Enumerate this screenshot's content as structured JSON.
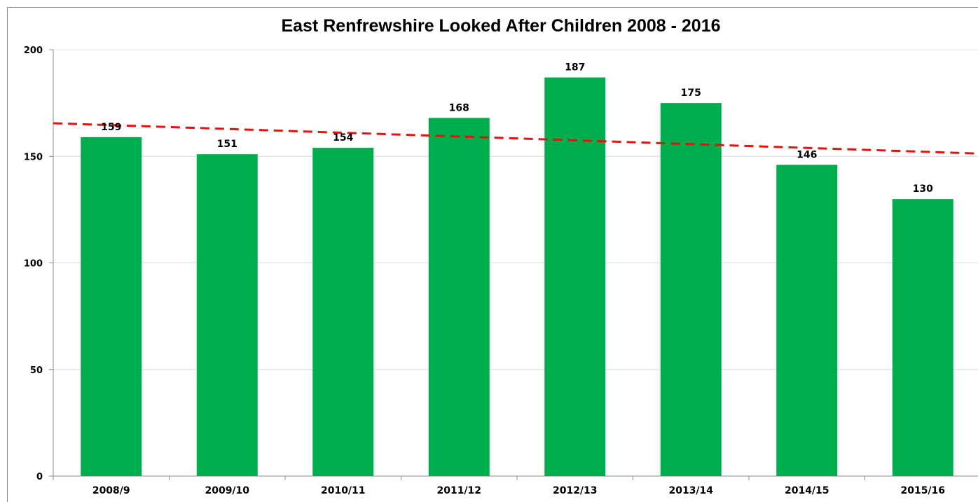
{
  "chart_data": {
    "type": "bar",
    "title": "East Renfrewshire Looked After Children 2008 - 2016",
    "xlabel": "",
    "ylabel": "",
    "categories": [
      "2008/9",
      "2009/10",
      "2010/11",
      "2011/12",
      "2012/13",
      "2013/14",
      "2014/15",
      "2015/16"
    ],
    "values": [
      159,
      151,
      154,
      168,
      187,
      175,
      146,
      130
    ],
    "data_labels": [
      "159",
      "151",
      "154",
      "168",
      "187",
      "175",
      "146",
      "130"
    ],
    "ylim": [
      0,
      200
    ],
    "yticks": [
      0,
      50,
      100,
      150,
      200
    ],
    "ytick_labels": [
      "0",
      "50",
      "100",
      "150",
      "200"
    ],
    "grid": true,
    "legend": "none",
    "trendline": {
      "type": "linear",
      "style": "dashed",
      "start_value": 165.5,
      "end_value": 151.3
    },
    "colors": {
      "bar": "#00ad4d",
      "trendline": "#e8120c",
      "gridline": "#dcdcdc",
      "axis": "#8c8c8c"
    }
  }
}
